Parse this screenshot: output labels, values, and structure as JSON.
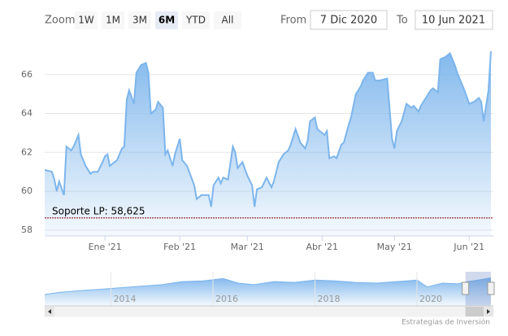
{
  "chart_data": {
    "type": "area",
    "zoom_label": "Zoom",
    "zoom_buttons": [
      "1W",
      "1M",
      "3M",
      "6M",
      "YTD",
      "All"
    ],
    "zoom_selected": "6M",
    "from_label": "From",
    "from_value": "7 Dic 2020",
    "to_label": "To",
    "to_value": "10 Jun 2021",
    "color": "#7cb5ec",
    "x": [
      "2020-12-07",
      "2020-12-10",
      "2020-12-11",
      "2020-12-12",
      "2020-12-13",
      "2020-12-15",
      "2020-12-16",
      "2020-12-18",
      "2020-12-19",
      "2020-12-21",
      "2020-12-22",
      "2020-12-24",
      "2020-12-26",
      "2020-12-27",
      "2020-12-29",
      "2020-12-31",
      "2021-01-01",
      "2021-01-02",
      "2021-01-03",
      "2021-01-05",
      "2021-01-06",
      "2021-01-08",
      "2021-01-09",
      "2021-01-10",
      "2021-01-11",
      "2021-01-13",
      "2021-01-14",
      "2021-01-16",
      "2021-01-18",
      "2021-01-19",
      "2021-01-20",
      "2021-01-22",
      "2021-01-23",
      "2021-01-25",
      "2021-01-26",
      "2021-01-27",
      "2021-01-29",
      "2021-01-30",
      "2021-02-01",
      "2021-02-02",
      "2021-02-04",
      "2021-02-07",
      "2021-02-08",
      "2021-02-10",
      "2021-02-13",
      "2021-02-14",
      "2021-02-15",
      "2021-02-17",
      "2021-02-18",
      "2021-02-19",
      "2021-02-21",
      "2021-02-23",
      "2021-02-24",
      "2021-02-25",
      "2021-02-27",
      "2021-03-01",
      "2021-03-03",
      "2021-03-04",
      "2021-03-05",
      "2021-03-07",
      "2021-03-09",
      "2021-03-11",
      "2021-03-12",
      "2021-03-14",
      "2021-03-16",
      "2021-03-18",
      "2021-03-19",
      "2021-03-21",
      "2021-03-23",
      "2021-03-25",
      "2021-03-26",
      "2021-03-27",
      "2021-03-29",
      "2021-03-30",
      "2021-04-02",
      "2021-04-03",
      "2021-04-04",
      "2021-04-06",
      "2021-04-07",
      "2021-04-09",
      "2021-04-10",
      "2021-04-12",
      "2021-04-13",
      "2021-04-15",
      "2021-04-17",
      "2021-04-18",
      "2021-04-20",
      "2021-04-22",
      "2021-04-23",
      "2021-04-25",
      "2021-04-28",
      "2021-04-30",
      "2021-05-01",
      "2021-05-02",
      "2021-05-04",
      "2021-05-06",
      "2021-05-08",
      "2021-05-09",
      "2021-05-11",
      "2021-05-12",
      "2021-05-14",
      "2021-05-16",
      "2021-05-17",
      "2021-05-19",
      "2021-05-20",
      "2021-05-22",
      "2021-05-24",
      "2021-05-26",
      "2021-05-27",
      "2021-05-29",
      "2021-05-30",
      "2021-06-01",
      "2021-06-03",
      "2021-06-05",
      "2021-06-06",
      "2021-06-07",
      "2021-06-09",
      "2021-06-10"
    ],
    "values": [
      61.1,
      61.0,
      60.6,
      60.0,
      60.5,
      59.8,
      62.3,
      62.1,
      62.3,
      62.9,
      61.9,
      61.3,
      60.9,
      61.0,
      61.0,
      61.5,
      61.8,
      61.9,
      61.3,
      61.5,
      61.6,
      62.2,
      62.3,
      64.7,
      65.2,
      64.5,
      66.1,
      66.5,
      66.6,
      66.1,
      64.0,
      64.2,
      64.6,
      64.3,
      61.9,
      62.1,
      61.3,
      61.9,
      62.7,
      61.6,
      61.3,
      60.3,
      59.6,
      59.8,
      59.8,
      59.2,
      60.3,
      60.7,
      60.4,
      60.7,
      60.6,
      62.3,
      62.0,
      61.2,
      61.5,
      60.8,
      60.3,
      59.2,
      60.1,
      60.2,
      60.7,
      60.2,
      60.5,
      61.5,
      61.9,
      62.1,
      62.4,
      63.2,
      62.5,
      62.2,
      62.6,
      63.6,
      63.8,
      63.2,
      62.9,
      63.1,
      61.7,
      61.8,
      61.7,
      62.4,
      62.5,
      63.4,
      63.8,
      65.0,
      65.4,
      65.7,
      66.1,
      66.1,
      65.7,
      65.7,
      65.8,
      62.7,
      62.2,
      63.1,
      63.6,
      64.5,
      64.3,
      64.4,
      64.1,
      64.4,
      64.8,
      65.2,
      65.3,
      65.1,
      66.8,
      66.9,
      67.1,
      66.5,
      66.1,
      65.5,
      65.2,
      64.5,
      64.6,
      64.8,
      64.6,
      63.6,
      65.2,
      67.2
    ],
    "xlim": [
      "2020-12-07",
      "2021-06-10"
    ],
    "xticks": [
      {
        "value": "2021-01-01",
        "label": "Ene '21"
      },
      {
        "value": "2021-02-01",
        "label": "Feb '21"
      },
      {
        "value": "2021-03-01",
        "label": "Mar '21"
      },
      {
        "value": "2021-04-01",
        "label": "Abr '21"
      },
      {
        "value": "2021-05-01",
        "label": "May '21"
      },
      {
        "value": "2021-06-01",
        "label": "Jun '21"
      }
    ],
    "ylim": [
      57.7,
      68
    ],
    "yticks": [
      58,
      60,
      62,
      64,
      66
    ],
    "grid": true,
    "support": {
      "value": 58.625,
      "label": "Soporte LP: 58,625",
      "color": "#8b0000"
    },
    "navigator": {
      "x": [
        2012.7,
        2013.0,
        2013.4,
        2013.8,
        2014.2,
        2014.6,
        2015.0,
        2015.4,
        2015.8,
        2016.2,
        2016.5,
        2016.8,
        2017.2,
        2017.6,
        2018.0,
        2018.4,
        2018.8,
        2019.2,
        2019.6,
        2020.0,
        2020.2,
        2020.5,
        2020.8,
        2021.0,
        2021.2,
        2021.45
      ],
      "values": [
        45,
        48,
        50,
        52,
        54,
        56,
        58,
        62,
        63,
        66,
        60,
        58,
        62,
        61,
        64,
        63,
        61,
        60,
        62,
        64,
        55,
        60,
        59,
        62,
        64,
        67
      ],
      "xlim": [
        2012.7,
        2021.45
      ],
      "ylim": [
        30,
        75
      ],
      "xticks": [
        2014,
        2016,
        2018,
        2020
      ],
      "selection": [
        2020.95,
        2021.45
      ]
    },
    "credits": "Estrategias de Inversión"
  }
}
